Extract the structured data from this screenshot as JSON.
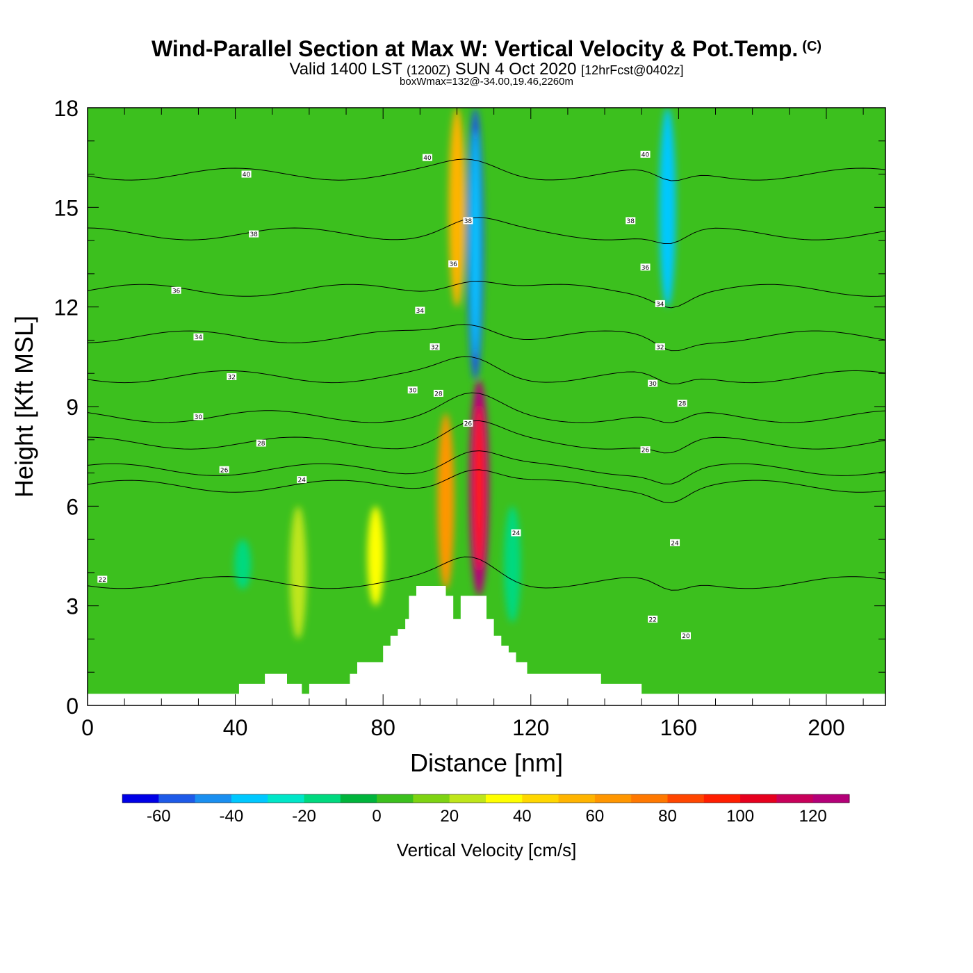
{
  "title": {
    "main": "Wind-Parallel Section at Max W: Vertical Velocity & Pot.Temp.",
    "copyright": "(C)",
    "valid_prefix": "Valid 1400 LST",
    "valid_utc": "(1200Z)",
    "valid_date": "SUN 4 Oct 2020",
    "forecast": "[12hrFcst@0402z]",
    "box_info": "boxWmax=132@-34.00,19.46,2260m"
  },
  "chart_data": {
    "type": "heatmap",
    "xlabel": "Distance [nm]",
    "ylabel": "Height [Kft MSL]",
    "xlim": [
      0,
      216
    ],
    "ylim": [
      0,
      18
    ],
    "x_ticks": [
      0,
      40,
      80,
      120,
      160,
      200
    ],
    "x_tick_labels": [
      "0",
      "40",
      "80",
      "120",
      "160",
      "200"
    ],
    "y_ticks": [
      0,
      3,
      6,
      9,
      12,
      15,
      18
    ],
    "y_tick_labels": [
      "0",
      "3",
      "6",
      "9",
      "12",
      "15",
      "18"
    ],
    "colorbar": {
      "title": "Vertical Velocity [cm/s]",
      "min": -70,
      "max": 130,
      "step": 10,
      "tick_values": [
        -60,
        -40,
        -20,
        0,
        20,
        40,
        60,
        80,
        100,
        120
      ],
      "tick_labels": [
        "-60",
        "-40",
        "-20",
        "0",
        "20",
        "40",
        "60",
        "80",
        "100",
        "120"
      ],
      "colors": [
        "#0000e6",
        "#1e5ae8",
        "#1a8ff0",
        "#00c8ff",
        "#00e6c8",
        "#00d97f",
        "#00b43c",
        "#3cc01e",
        "#7ed312",
        "#bfe61a",
        "#ffff00",
        "#ffd700",
        "#ffb400",
        "#ff9600",
        "#ff7800",
        "#ff4600",
        "#ff1e00",
        "#e6001e",
        "#c8005a",
        "#b40078"
      ]
    },
    "velocity_features": [
      {
        "x": 106,
        "z_bottom": 3.3,
        "z_top": 9.8,
        "w": 120
      },
      {
        "x": 97,
        "z_bottom": 3.5,
        "z_top": 8.8,
        "w": 65
      },
      {
        "x": 105,
        "z_bottom": 9.8,
        "z_top": 18,
        "w": -60
      },
      {
        "x": 100,
        "z_bottom": 12,
        "z_top": 18,
        "w": 50
      },
      {
        "x": 115,
        "z_bottom": 2.5,
        "z_top": 6,
        "w": -20
      },
      {
        "x": 157,
        "z_bottom": 12,
        "z_top": 18,
        "w": -40
      },
      {
        "x": 42,
        "z_bottom": 3.5,
        "z_top": 5,
        "w": -20
      },
      {
        "x": 57,
        "z_bottom": 2,
        "z_top": 6,
        "w": 25
      },
      {
        "x": 78,
        "z_bottom": 3,
        "z_top": 6,
        "w": 35
      }
    ],
    "theta_contours": [
      {
        "value": 22,
        "z": 3.7
      },
      {
        "value": 24,
        "z": 6.6
      },
      {
        "value": 26,
        "z": 7.1
      },
      {
        "value": 28,
        "z": 7.9
      },
      {
        "value": 30,
        "z": 8.7
      },
      {
        "value": 32,
        "z": 9.9
      },
      {
        "value": 34,
        "z": 11.1
      },
      {
        "value": 36,
        "z": 12.5
      },
      {
        "value": 38,
        "z": 14.2
      },
      {
        "value": 40,
        "z": 16.0
      }
    ],
    "contour_labels": [
      {
        "text": "40",
        "x": 43,
        "z": 16.0
      },
      {
        "text": "40",
        "x": 92,
        "z": 16.5
      },
      {
        "text": "40",
        "x": 151,
        "z": 16.6
      },
      {
        "text": "38",
        "x": 45,
        "z": 14.2
      },
      {
        "text": "38",
        "x": 103,
        "z": 14.6
      },
      {
        "text": "38",
        "x": 147,
        "z": 14.6
      },
      {
        "text": "36",
        "x": 24,
        "z": 12.5
      },
      {
        "text": "36",
        "x": 99,
        "z": 13.3
      },
      {
        "text": "36",
        "x": 151,
        "z": 13.2
      },
      {
        "text": "34",
        "x": 30,
        "z": 11.1
      },
      {
        "text": "34",
        "x": 90,
        "z": 11.9
      },
      {
        "text": "34",
        "x": 155,
        "z": 12.1
      },
      {
        "text": "32",
        "x": 39,
        "z": 9.9
      },
      {
        "text": "32",
        "x": 94,
        "z": 10.8
      },
      {
        "text": "32",
        "x": 155,
        "z": 10.8
      },
      {
        "text": "30",
        "x": 30,
        "z": 8.7
      },
      {
        "text": "30",
        "x": 88,
        "z": 9.5
      },
      {
        "text": "30",
        "x": 153,
        "z": 9.7
      },
      {
        "text": "28",
        "x": 47,
        "z": 7.9
      },
      {
        "text": "28",
        "x": 95,
        "z": 9.4
      },
      {
        "text": "28",
        "x": 161,
        "z": 9.1
      },
      {
        "text": "26",
        "x": 37,
        "z": 7.1
      },
      {
        "text": "26",
        "x": 103,
        "z": 8.5
      },
      {
        "text": "26",
        "x": 151,
        "z": 7.7
      },
      {
        "text": "24",
        "x": 58,
        "z": 6.8
      },
      {
        "text": "24",
        "x": 116,
        "z": 5.2
      },
      {
        "text": "24",
        "x": 159,
        "z": 4.9
      },
      {
        "text": "22",
        "x": 4,
        "z": 3.8
      },
      {
        "text": "22",
        "x": 153,
        "z": 2.6
      },
      {
        "text": "20",
        "x": 162,
        "z": 2.1
      }
    ],
    "terrain": [
      [
        0,
        0.35
      ],
      [
        41,
        0.35
      ],
      [
        41,
        0.65
      ],
      [
        48,
        0.65
      ],
      [
        48,
        0.95
      ],
      [
        54,
        0.95
      ],
      [
        54,
        0.65
      ],
      [
        58,
        0.65
      ],
      [
        58,
        0.35
      ],
      [
        60,
        0.35
      ],
      [
        60,
        0.65
      ],
      [
        71,
        0.65
      ],
      [
        71,
        0.95
      ],
      [
        73,
        0.95
      ],
      [
        73,
        1.3
      ],
      [
        80,
        1.3
      ],
      [
        80,
        1.8
      ],
      [
        82,
        1.8
      ],
      [
        82,
        2.1
      ],
      [
        84,
        2.1
      ],
      [
        84,
        2.3
      ],
      [
        86,
        2.3
      ],
      [
        86,
        2.6
      ],
      [
        87,
        2.6
      ],
      [
        87,
        3.3
      ],
      [
        89,
        3.3
      ],
      [
        89,
        3.6
      ],
      [
        97,
        3.6
      ],
      [
        97,
        3.3
      ],
      [
        99,
        3.3
      ],
      [
        99,
        2.6
      ],
      [
        101,
        2.6
      ],
      [
        101,
        3.3
      ],
      [
        108,
        3.3
      ],
      [
        108,
        2.6
      ],
      [
        110,
        2.6
      ],
      [
        110,
        2.1
      ],
      [
        112,
        2.1
      ],
      [
        112,
        1.8
      ],
      [
        114,
        1.8
      ],
      [
        114,
        1.6
      ],
      [
        116,
        1.6
      ],
      [
        116,
        1.3
      ],
      [
        119,
        1.3
      ],
      [
        119,
        0.95
      ],
      [
        139,
        0.95
      ],
      [
        139,
        0.65
      ],
      [
        150,
        0.65
      ],
      [
        150,
        0.35
      ],
      [
        216,
        0.35
      ]
    ]
  }
}
